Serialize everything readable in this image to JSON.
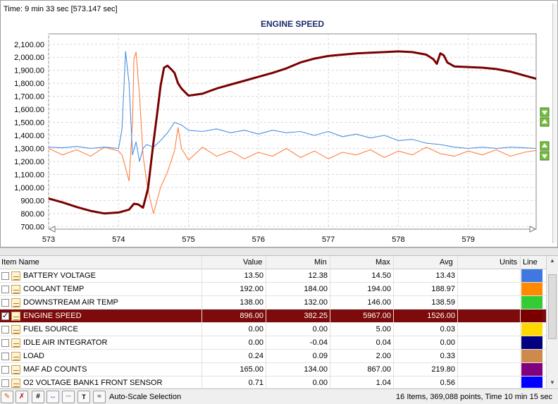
{
  "chart": {
    "time_label": "Time: 9 min 33 sec [573.147 sec]",
    "title": "ENGINE SPEED"
  },
  "chart_data": {
    "type": "line",
    "title": "ENGINE SPEED",
    "xlim": [
      573,
      579.97
    ],
    "ylim": [
      680,
      2180
    ],
    "x_ticks": [
      "573",
      "574",
      "575",
      "576",
      "577",
      "578",
      "579"
    ],
    "y_ticks": [
      "700.00",
      "800.00",
      "900.00",
      "1,000.00",
      "1,100.00",
      "1,200.00",
      "1,300.00",
      "1,400.00",
      "1,500.00",
      "1,600.00",
      "1,700.00",
      "1,800.00",
      "1,900.00",
      "2,000.00",
      "2,100.00"
    ],
    "grid": true,
    "series": [
      {
        "color": "#7a0000",
        "points": [
          [
            573.0,
            915
          ],
          [
            573.2,
            885
          ],
          [
            573.4,
            850
          ],
          [
            573.6,
            820
          ],
          [
            573.8,
            800
          ],
          [
            574.0,
            808
          ],
          [
            574.15,
            830
          ],
          [
            574.22,
            875
          ],
          [
            574.28,
            870
          ],
          [
            574.35,
            845
          ],
          [
            574.42,
            990
          ],
          [
            574.5,
            1350
          ],
          [
            574.55,
            1560
          ],
          [
            574.6,
            1780
          ],
          [
            574.65,
            1920
          ],
          [
            574.7,
            1935
          ],
          [
            574.75,
            1910
          ],
          [
            574.8,
            1880
          ],
          [
            574.85,
            1800
          ],
          [
            574.9,
            1760
          ],
          [
            575.0,
            1705
          ],
          [
            575.2,
            1720
          ],
          [
            575.4,
            1760
          ],
          [
            575.6,
            1790
          ],
          [
            575.8,
            1820
          ],
          [
            576.0,
            1850
          ],
          [
            576.2,
            1880
          ],
          [
            576.4,
            1915
          ],
          [
            576.6,
            1960
          ],
          [
            576.8,
            1990
          ],
          [
            577.0,
            2010
          ],
          [
            577.2,
            2020
          ],
          [
            577.4,
            2030
          ],
          [
            577.6,
            2035
          ],
          [
            577.8,
            2040
          ],
          [
            578.0,
            2045
          ],
          [
            578.2,
            2040
          ],
          [
            578.4,
            2020
          ],
          [
            578.5,
            1985
          ],
          [
            578.55,
            1950
          ],
          [
            578.6,
            2030
          ],
          [
            578.65,
            2015
          ],
          [
            578.7,
            1960
          ],
          [
            578.8,
            1930
          ],
          [
            579.0,
            1925
          ],
          [
            579.2,
            1920
          ],
          [
            579.4,
            1910
          ],
          [
            579.6,
            1890
          ],
          [
            579.8,
            1860
          ],
          [
            579.97,
            1835
          ]
        ]
      },
      {
        "color": "#ff7f3f",
        "points": [
          [
            573.0,
            1300
          ],
          [
            573.2,
            1250
          ],
          [
            573.4,
            1290
          ],
          [
            573.6,
            1240
          ],
          [
            573.8,
            1310
          ],
          [
            574.0,
            1280
          ],
          [
            574.05,
            1250
          ],
          [
            574.1,
            1150
          ],
          [
            574.15,
            1050
          ],
          [
            574.2,
            1500
          ],
          [
            574.22,
            1990
          ],
          [
            574.25,
            2040
          ],
          [
            574.3,
            1700
          ],
          [
            574.35,
            1250
          ],
          [
            574.4,
            1050
          ],
          [
            574.45,
            910
          ],
          [
            574.5,
            800
          ],
          [
            574.55,
            900
          ],
          [
            574.6,
            1000
          ],
          [
            574.7,
            1120
          ],
          [
            574.8,
            1280
          ],
          [
            574.85,
            1460
          ],
          [
            574.9,
            1300
          ],
          [
            575.0,
            1210
          ],
          [
            575.2,
            1310
          ],
          [
            575.4,
            1240
          ],
          [
            575.6,
            1280
          ],
          [
            575.8,
            1220
          ],
          [
            576.0,
            1270
          ],
          [
            576.2,
            1240
          ],
          [
            576.4,
            1300
          ],
          [
            576.6,
            1230
          ],
          [
            576.8,
            1280
          ],
          [
            577.0,
            1220
          ],
          [
            577.2,
            1270
          ],
          [
            577.4,
            1250
          ],
          [
            577.6,
            1290
          ],
          [
            577.8,
            1230
          ],
          [
            578.0,
            1280
          ],
          [
            578.2,
            1250
          ],
          [
            578.4,
            1310
          ],
          [
            578.6,
            1260
          ],
          [
            578.8,
            1240
          ],
          [
            579.0,
            1280
          ],
          [
            579.2,
            1250
          ],
          [
            579.4,
            1290
          ],
          [
            579.6,
            1240
          ],
          [
            579.8,
            1270
          ],
          [
            579.97,
            1285
          ]
        ]
      },
      {
        "color": "#4a90e2",
        "points": [
          [
            573.0,
            1310
          ],
          [
            573.2,
            1305
          ],
          [
            573.4,
            1315
          ],
          [
            573.6,
            1300
          ],
          [
            573.8,
            1310
          ],
          [
            574.0,
            1300
          ],
          [
            574.05,
            1450
          ],
          [
            574.1,
            2045
          ],
          [
            574.15,
            1800
          ],
          [
            574.2,
            1250
          ],
          [
            574.25,
            1350
          ],
          [
            574.3,
            1200
          ],
          [
            574.35,
            1300
          ],
          [
            574.4,
            1330
          ],
          [
            574.5,
            1310
          ],
          [
            574.6,
            1360
          ],
          [
            574.7,
            1420
          ],
          [
            574.8,
            1500
          ],
          [
            574.9,
            1480
          ],
          [
            575.0,
            1440
          ],
          [
            575.2,
            1430
          ],
          [
            575.4,
            1450
          ],
          [
            575.6,
            1420
          ],
          [
            575.8,
            1440
          ],
          [
            576.0,
            1410
          ],
          [
            576.2,
            1440
          ],
          [
            576.4,
            1420
          ],
          [
            576.6,
            1430
          ],
          [
            576.8,
            1400
          ],
          [
            577.0,
            1430
          ],
          [
            577.2,
            1390
          ],
          [
            577.4,
            1410
          ],
          [
            577.6,
            1380
          ],
          [
            577.8,
            1400
          ],
          [
            578.0,
            1360
          ],
          [
            578.2,
            1370
          ],
          [
            578.4,
            1340
          ],
          [
            578.6,
            1330
          ],
          [
            578.8,
            1310
          ],
          [
            579.0,
            1300
          ],
          [
            579.2,
            1310
          ],
          [
            579.4,
            1300
          ],
          [
            579.6,
            1310
          ],
          [
            579.8,
            1305
          ],
          [
            579.97,
            1300
          ]
        ]
      }
    ]
  },
  "table": {
    "headers": {
      "item_name": "Item Name",
      "value": "Value",
      "min": "Min",
      "max": "Max",
      "avg": "Avg",
      "units": "Units",
      "line": "Line"
    },
    "rows": [
      {
        "name": "BATTERY VOLTAGE",
        "value": "13.50",
        "min": "12.38",
        "max": "14.50",
        "avg": "13.43",
        "units": "",
        "color": "#3e78e0",
        "checked": false,
        "selected": false
      },
      {
        "name": "COOLANT TEMP",
        "value": "192.00",
        "min": "184.00",
        "max": "194.00",
        "avg": "188.97",
        "units": "",
        "color": "#ff8a00",
        "checked": false,
        "selected": false
      },
      {
        "name": "DOWNSTREAM AIR TEMP",
        "value": "138.00",
        "min": "132.00",
        "max": "146.00",
        "avg": "138.59",
        "units": "",
        "color": "#33cc33",
        "checked": false,
        "selected": false
      },
      {
        "name": "ENGINE SPEED",
        "value": "896.00",
        "min": "382.25",
        "max": "5967.00",
        "avg": "1526.00",
        "units": "",
        "color": "#7a0000",
        "checked": true,
        "selected": true
      },
      {
        "name": "FUEL SOURCE",
        "value": "0.00",
        "min": "0.00",
        "max": "5.00",
        "avg": "0.03",
        "units": "",
        "color": "#ffd800",
        "checked": false,
        "selected": false
      },
      {
        "name": "IDLE AIR INTEGRATOR",
        "value": "0.00",
        "min": "-0.04",
        "max": "0.04",
        "avg": "0.00",
        "units": "",
        "color": "#000080",
        "checked": false,
        "selected": false
      },
      {
        "name": "LOAD",
        "value": "0.24",
        "min": "0.09",
        "max": "2.00",
        "avg": "0.33",
        "units": "",
        "color": "#cd8a4a",
        "checked": false,
        "selected": false
      },
      {
        "name": "MAF AD COUNTS",
        "value": "165.00",
        "min": "134.00",
        "max": "867.00",
        "avg": "219.80",
        "units": "",
        "color": "#800080",
        "checked": false,
        "selected": false
      },
      {
        "name": "O2 VOLTAGE BANK1 FRONT SENSOR",
        "value": "0.71",
        "min": "0.00",
        "max": "1.04",
        "avg": "0.56",
        "units": "",
        "color": "#0000ff",
        "checked": false,
        "selected": false
      }
    ]
  },
  "statusbar": {
    "auto_scale_label": "Auto-Scale Selection",
    "info": "16 Items, 369,088 points, Time 10 min 15 sec",
    "tool_icons": [
      "pencil-icon",
      "pencil-delete-icon",
      "hash-icon",
      "fit-icon",
      "line-icon",
      "text-icon",
      "graph-icon"
    ]
  }
}
